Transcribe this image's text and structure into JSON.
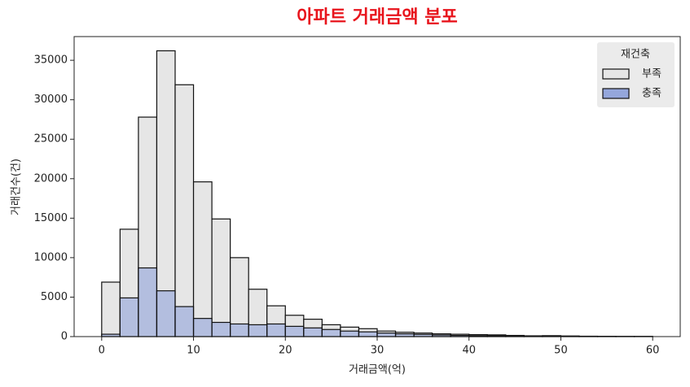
{
  "chart_data": {
    "type": "histogram",
    "title": "아파트 거래금액 분포",
    "x_label": "거래금액(억)",
    "y_label": "거래건수(건)",
    "bins": [
      0,
      2,
      4,
      6,
      8,
      10,
      12,
      14,
      16,
      18,
      20,
      22,
      24,
      26,
      28,
      30,
      32,
      34,
      36,
      38,
      40,
      42,
      44,
      46,
      48,
      50,
      52,
      54,
      56,
      58,
      60
    ],
    "legend_title": "재건축",
    "legend_position": "upper right",
    "series": [
      {
        "name": "부족",
        "color": "#e6e6e6",
        "values": [
          6900,
          13600,
          27800,
          36200,
          31900,
          19600,
          14900,
          10000,
          6000,
          3900,
          2700,
          2200,
          1500,
          1200,
          1000,
          700,
          550,
          450,
          350,
          300,
          250,
          220,
          150,
          100,
          120,
          80,
          50,
          40,
          30,
          30
        ]
      },
      {
        "name": "충족",
        "color": "#8096d8",
        "values": [
          300,
          4900,
          8700,
          5800,
          3800,
          2300,
          1800,
          1600,
          1500,
          1600,
          1300,
          1100,
          900,
          700,
          600,
          450,
          350,
          280,
          200,
          150,
          120,
          100,
          80,
          60,
          50,
          40,
          30,
          20,
          15,
          10
        ]
      }
    ],
    "xlim": [
      -3,
      63
    ],
    "ylim": [
      0,
      38000
    ],
    "xticks": [
      0,
      10,
      20,
      30,
      40,
      50,
      60
    ],
    "yticks": [
      0,
      5000,
      10000,
      15000,
      20000,
      25000,
      30000,
      35000
    ],
    "grid": false
  }
}
